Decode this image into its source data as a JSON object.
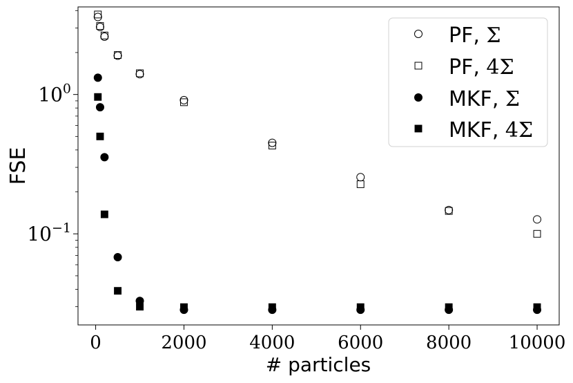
{
  "chart_data": {
    "type": "scatter",
    "xlabel": "# particles",
    "ylabel": "FSE",
    "xlim": [
      -400,
      10500
    ],
    "ylim": [
      0.0222,
      4.25
    ],
    "yscale": "log",
    "grid": false,
    "legend_position": "top-right",
    "x_ticks": [
      0,
      2000,
      4000,
      6000,
      8000,
      10000
    ],
    "x_tick_labels": [
      "0",
      "2000",
      "4000",
      "6000",
      "8000",
      "10000"
    ],
    "y_ticks": [
      1,
      0.1
    ],
    "y_tick_labels": [
      {
        "base": "10",
        "exp": "0"
      },
      {
        "base": "10",
        "exp": "−1"
      }
    ],
    "series": [
      {
        "name": "PF, Σ",
        "legend_text": "PF,",
        "legend_math": "Σ",
        "marker": "circle",
        "filled": false,
        "x": [
          50,
          100,
          200,
          500,
          1000,
          2000,
          4000,
          6000,
          8000,
          10000
        ],
        "y": [
          3.6,
          3.05,
          2.6,
          1.9,
          1.4,
          0.91,
          0.45,
          0.255,
          0.148,
          0.127
        ]
      },
      {
        "name": "PF, 4Σ",
        "legend_text": "PF,",
        "legend_math": "4Σ",
        "marker": "square",
        "filled": false,
        "x": [
          50,
          100,
          200,
          500,
          1000,
          2000,
          4000,
          6000,
          8000,
          10000
        ],
        "y": [
          3.75,
          3.1,
          2.65,
          1.92,
          1.42,
          0.88,
          0.43,
          0.227,
          0.146,
          0.1
        ]
      },
      {
        "name": "MKF, Σ",
        "legend_text": "MKF,",
        "legend_math": "Σ",
        "marker": "circle",
        "filled": true,
        "x": [
          50,
          100,
          200,
          500,
          1000,
          2000,
          4000,
          6000,
          8000,
          10000
        ],
        "y": [
          1.32,
          0.81,
          0.355,
          0.068,
          0.033,
          0.0285,
          0.0285,
          0.0285,
          0.0285,
          0.0285
        ]
      },
      {
        "name": "MKF, 4Σ",
        "legend_text": "MKF,",
        "legend_math": "4Σ",
        "marker": "square",
        "filled": true,
        "x": [
          50,
          100,
          200,
          500,
          1000,
          2000,
          4000,
          6000,
          8000,
          10000
        ],
        "y": [
          0.96,
          0.5,
          0.138,
          0.039,
          0.03,
          0.0298,
          0.0298,
          0.0298,
          0.0298,
          0.0298
        ]
      }
    ]
  }
}
